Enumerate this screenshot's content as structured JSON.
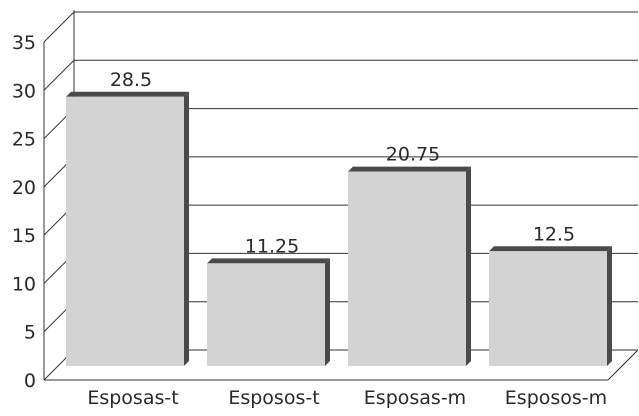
{
  "chart_data": {
    "type": "bar",
    "categories": [
      "Esposas-t",
      "Esposos-t",
      "Esposas-m",
      "Esposos-m"
    ],
    "values": [
      28.5,
      11.25,
      20.75,
      12.5
    ],
    "data_labels": [
      "28.5",
      "11.25",
      "20.75",
      "12.5"
    ],
    "yticks": [
      "0",
      "5",
      "10",
      "15",
      "20",
      "25",
      "30",
      "35"
    ],
    "ylim": [
      0,
      35
    ],
    "grid": true,
    "title": "",
    "xlabel": "",
    "ylabel": "",
    "style": "3d",
    "colors": {
      "bar_face": "#d3d3d3",
      "bar_side": "#4a4a4a",
      "grid": "#333333"
    }
  }
}
